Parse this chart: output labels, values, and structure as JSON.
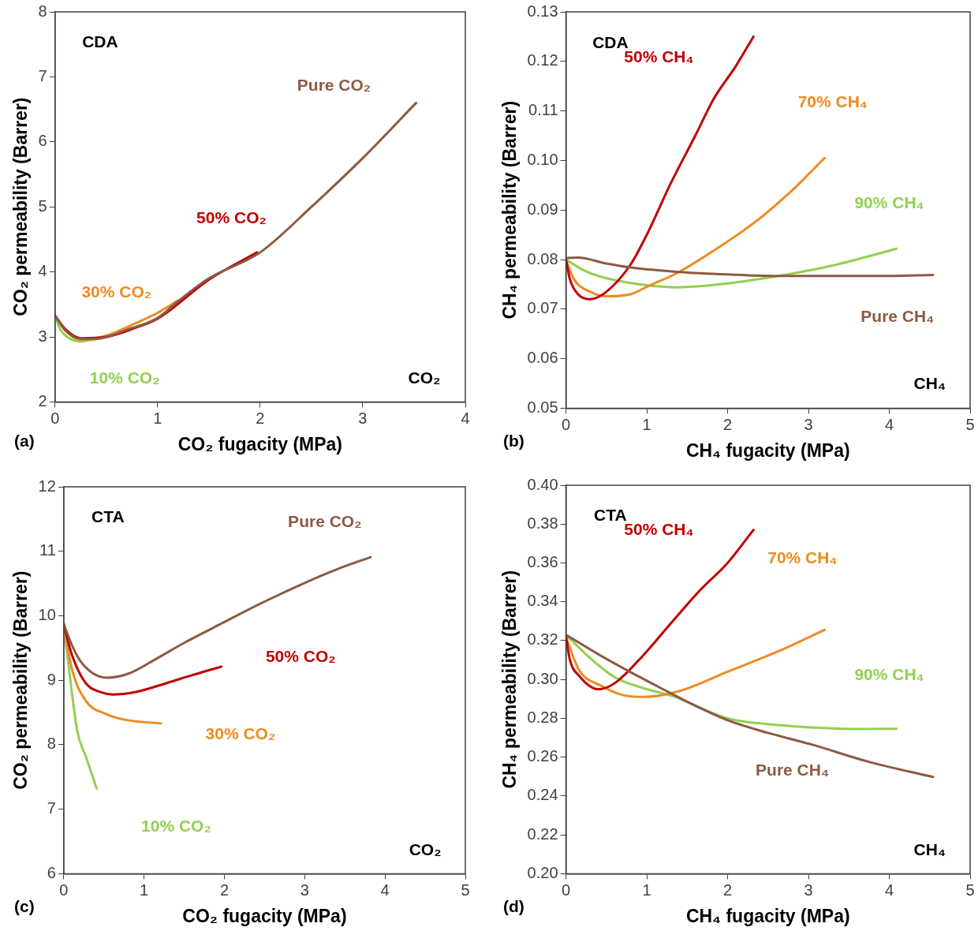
{
  "chart_data": [
    {
      "type": "line",
      "xlabel": "CO₂ fugacity (MPa)",
      "ylabel": "CO₂ permeability (Barrer)",
      "annotations": [
        "CDA",
        "CO₂",
        "(a)"
      ],
      "xlim": [
        0,
        4
      ],
      "xticks": [
        0,
        1,
        2,
        3,
        4
      ],
      "ylim": [
        2,
        8
      ],
      "yticks": [
        2,
        3,
        4,
        5,
        6,
        7,
        8
      ],
      "grid": false,
      "legend": false,
      "marker": "none",
      "line_style": "solid",
      "series": [
        {
          "name": "Pure CO₂",
          "color": "#8d5a43",
          "x": [
            0,
            0.1,
            0.25,
            0.4,
            0.7,
            1.0,
            1.2,
            1.5,
            2.0,
            2.5,
            3.0,
            3.52
          ],
          "values": [
            3.33,
            3.1,
            2.97,
            2.97,
            3.11,
            3.29,
            3.55,
            3.9,
            4.3,
            5.0,
            5.75,
            6.6
          ]
        },
        {
          "name": "50% CO₂",
          "color": "#c00000",
          "x": [
            0,
            0.1,
            0.25,
            0.5,
            0.8,
            1.0,
            1.5,
            1.97
          ],
          "values": [
            3.33,
            3.12,
            2.98,
            3.0,
            3.15,
            3.28,
            3.88,
            4.3
          ]
        },
        {
          "name": "30% CO₂",
          "color": "#ee8b21",
          "x": [
            0,
            0.1,
            0.25,
            0.5,
            0.8,
            1.0,
            1.2
          ],
          "values": [
            3.33,
            3.1,
            2.96,
            3.02,
            3.22,
            3.37,
            3.56
          ]
        },
        {
          "name": "10% CO₂",
          "color": "#92d050",
          "x": [
            0,
            0.05,
            0.12,
            0.25,
            0.41
          ],
          "values": [
            3.33,
            3.12,
            3.0,
            2.93,
            2.97
          ]
        }
      ]
    },
    {
      "type": "line",
      "xlabel": "CH₄ fugacity (MPa)",
      "ylabel": "CH₄ permeability (Barrer)",
      "annotations": [
        "CDA",
        "CH₄",
        "(b)"
      ],
      "xlim": [
        0,
        5
      ],
      "xticks": [
        0,
        1,
        2,
        3,
        4,
        5
      ],
      "ylim": [
        0.05,
        0.13
      ],
      "yticks": [
        0.05,
        0.06,
        0.07,
        0.08,
        0.09,
        {
          "value": 0.1,
          "label": "0.10"
        },
        0.11,
        0.12,
        0.13
      ],
      "grid": false,
      "legend": false,
      "marker": "none",
      "line_style": "solid",
      "series": [
        {
          "name": "Pure CH₄",
          "color": "#8d5a43",
          "x": [
            0,
            0.15,
            0.5,
            0.8,
            1.4,
            2.0,
            2.6,
            3.4,
            4.0,
            4.54
          ],
          "values": [
            0.0803,
            0.0804,
            0.0792,
            0.0784,
            0.0775,
            0.077,
            0.0767,
            0.0767,
            0.0767,
            0.0769
          ]
        },
        {
          "name": "50% CH₄",
          "color": "#c00000",
          "x": [
            0,
            0.05,
            0.15,
            0.3,
            0.5,
            0.8,
            1.0,
            1.3,
            1.6,
            1.83,
            2.1,
            2.32
          ],
          "values": [
            0.08,
            0.076,
            0.073,
            0.072,
            0.0735,
            0.079,
            0.085,
            0.0955,
            0.105,
            0.1125,
            0.119,
            0.125
          ]
        },
        {
          "name": "70% CH₄",
          "color": "#ee8b21",
          "x": [
            0,
            0.1,
            0.3,
            0.5,
            0.8,
            1.0,
            1.4,
            1.8,
            2.35,
            2.8,
            3.2
          ],
          "values": [
            0.08,
            0.076,
            0.0735,
            0.0726,
            0.073,
            0.0745,
            0.0775,
            0.0815,
            0.0877,
            0.094,
            0.1005
          ]
        },
        {
          "name": "90% CH₄",
          "color": "#92d050",
          "x": [
            0,
            0.2,
            0.44,
            0.96,
            1.38,
            2.0,
            2.63,
            3.3,
            4.09
          ],
          "values": [
            0.08,
            0.078,
            0.0765,
            0.0749,
            0.0744,
            0.0752,
            0.0767,
            0.0788,
            0.0822
          ]
        }
      ]
    },
    {
      "type": "line",
      "xlabel": "CO₂ fugacity (MPa)",
      "ylabel": "CO₂ permeability (Barrer)",
      "annotations": [
        "CTA",
        "CO₂",
        "(c)"
      ],
      "xlim": [
        0,
        5
      ],
      "xticks": [
        0,
        1,
        2,
        3,
        4,
        5
      ],
      "ylim": [
        6,
        12
      ],
      "yticks": [
        6,
        7,
        8,
        9,
        10,
        11,
        12
      ],
      "grid": false,
      "legend": false,
      "marker": "none",
      "line_style": "solid",
      "series": [
        {
          "name": "Pure CO₂",
          "color": "#8d5a43",
          "x": [
            0,
            0.1,
            0.2,
            0.35,
            0.54,
            0.8,
            1.12,
            1.5,
            1.98,
            2.5,
            3.0,
            3.4,
            3.82
          ],
          "values": [
            9.87,
            9.55,
            9.31,
            9.12,
            9.04,
            9.1,
            9.31,
            9.58,
            9.89,
            10.22,
            10.51,
            10.72,
            10.91
          ]
        },
        {
          "name": "50% CO₂",
          "color": "#c00000",
          "x": [
            0,
            0.1,
            0.27,
            0.45,
            0.61,
            0.9,
            1.29,
            1.6,
            1.96
          ],
          "values": [
            9.87,
            9.4,
            8.96,
            8.82,
            8.78,
            8.82,
            8.96,
            9.08,
            9.21
          ]
        },
        {
          "name": "30% CO₂",
          "color": "#ee8b21",
          "x": [
            0,
            0.1,
            0.27,
            0.54,
            0.8,
            1.21
          ],
          "values": [
            9.87,
            9.18,
            8.69,
            8.47,
            8.38,
            8.33
          ]
        },
        {
          "name": "10% CO₂",
          "color": "#92d050",
          "x": [
            0,
            0.065,
            0.17,
            0.28,
            0.41
          ],
          "values": [
            9.87,
            9.18,
            8.2,
            7.8,
            7.32
          ]
        }
      ]
    },
    {
      "type": "line",
      "xlabel": "CH₄ fugacity (MPa)",
      "ylabel": "CH₄ permeability (Barrer)",
      "annotations": [
        "CTA",
        "CH₄",
        "(d)"
      ],
      "xlim": [
        0,
        5
      ],
      "xticks": [
        0,
        1,
        2,
        3,
        4,
        5
      ],
      "ylim": [
        0.2,
        0.4
      ],
      "yticks": [
        {
          "value": 0.2,
          "label": "0.20"
        },
        0.22,
        0.24,
        0.26,
        0.28,
        {
          "value": 0.3,
          "label": "0.30"
        },
        0.32,
        0.34,
        0.36,
        0.38,
        {
          "value": 0.4,
          "label": "0.40"
        }
      ],
      "grid": false,
      "legend": false,
      "marker": "none",
      "line_style": "solid",
      "series": [
        {
          "name": "Pure CH₄",
          "color": "#8d5a43",
          "x": [
            0,
            0.4,
            0.79,
            1.2,
            1.6,
            2.0,
            2.5,
            3.05,
            3.74,
            4.54
          ],
          "values": [
            0.323,
            0.313,
            0.304,
            0.295,
            0.2865,
            0.279,
            0.2725,
            0.2664,
            0.2577,
            0.2498
          ]
        },
        {
          "name": "50% CH₄",
          "color": "#c00000",
          "x": [
            0,
            0.05,
            0.16,
            0.4,
            0.6,
            0.96,
            1.3,
            1.66,
            2.0,
            2.32
          ],
          "values": [
            0.322,
            0.31,
            0.302,
            0.295,
            0.298,
            0.3126,
            0.329,
            0.346,
            0.36,
            0.377
          ]
        },
        {
          "name": "70% CH₄",
          "color": "#ee8b21",
          "x": [
            0,
            0.16,
            0.44,
            0.7,
            0.96,
            1.4,
            2.0,
            2.6,
            3.2
          ],
          "values": [
            0.322,
            0.305,
            0.2967,
            0.292,
            0.291,
            0.294,
            0.304,
            0.314,
            0.3255
          ]
        },
        {
          "name": "90% CH₄",
          "color": "#92d050",
          "x": [
            0,
            0.3,
            0.61,
            1.0,
            1.31,
            2.0,
            2.5,
            3.05,
            3.6,
            4.09
          ],
          "values": [
            0.323,
            0.311,
            0.301,
            0.295,
            0.2916,
            0.28,
            0.277,
            0.2753,
            0.2745,
            0.2746
          ]
        }
      ]
    }
  ]
}
